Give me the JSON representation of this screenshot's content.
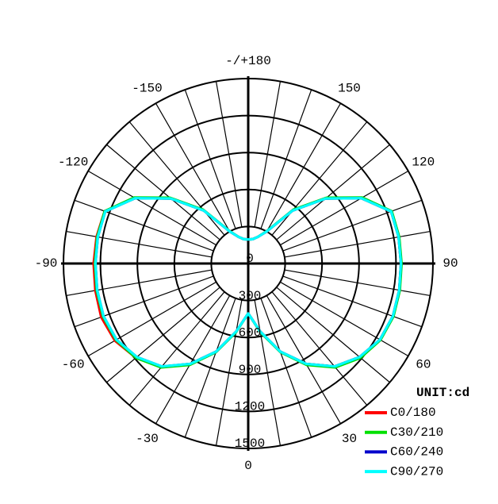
{
  "chart_data": {
    "type": "polar",
    "unit_label": "UNIT:cd",
    "xlim": [
      -180,
      180
    ],
    "xticks": [
      -150,
      -120,
      -90,
      -60,
      -30,
      0,
      30,
      60,
      90,
      120,
      150,
      {
        "value": 180,
        "label": "-/+180"
      }
    ],
    "ylim": [
      0,
      1500
    ],
    "yticks": [
      0,
      300,
      600,
      900,
      1200,
      1500
    ],
    "x": [
      -180,
      -170,
      -160,
      -150,
      -140,
      -130,
      -120,
      -110,
      -100,
      -90,
      -80,
      -70,
      -60,
      -50,
      -40,
      -30,
      -20,
      -10,
      0,
      10,
      20,
      30,
      40,
      50,
      60,
      70,
      80,
      90,
      100,
      110,
      120,
      130,
      140,
      150,
      160,
      170,
      180
    ],
    "series": [
      {
        "name": "C0/180",
        "color": "#ff0000",
        "values": [
          195,
          200,
          230,
          300,
          560,
          820,
          1060,
          1240,
          1250,
          1255,
          1260,
          1270,
          1250,
          1190,
          1095,
          940,
          760,
          560,
          405,
          560,
          760,
          940,
          1090,
          1180,
          1235,
          1250,
          1245,
          1240,
          1240,
          1235,
          1060,
          820,
          560,
          300,
          230,
          200,
          195
        ]
      },
      {
        "name": "C30/210",
        "color": "#00e000",
        "values": [
          195,
          200,
          230,
          305,
          570,
          830,
          1070,
          1240,
          1245,
          1245,
          1250,
          1255,
          1240,
          1190,
          1100,
          950,
          765,
          565,
          405,
          565,
          765,
          950,
          1100,
          1190,
          1240,
          1255,
          1250,
          1245,
          1245,
          1240,
          1070,
          830,
          570,
          305,
          230,
          200,
          195
        ]
      },
      {
        "name": "C60/240",
        "color": "#0000cc",
        "values": [
          195,
          200,
          230,
          300,
          560,
          820,
          1060,
          1235,
          1240,
          1240,
          1245,
          1250,
          1235,
          1180,
          1090,
          940,
          760,
          560,
          405,
          560,
          760,
          940,
          1090,
          1180,
          1235,
          1250,
          1245,
          1240,
          1240,
          1235,
          1060,
          820,
          560,
          300,
          230,
          200,
          195
        ]
      },
      {
        "name": "C90/270",
        "color": "#00ffff",
        "values": [
          195,
          200,
          230,
          300,
          560,
          820,
          1060,
          1235,
          1240,
          1240,
          1245,
          1250,
          1235,
          1180,
          1090,
          940,
          760,
          560,
          405,
          560,
          760,
          940,
          1090,
          1180,
          1235,
          1250,
          1245,
          1240,
          1240,
          1235,
          1060,
          820,
          560,
          300,
          230,
          200,
          195
        ]
      }
    ]
  }
}
